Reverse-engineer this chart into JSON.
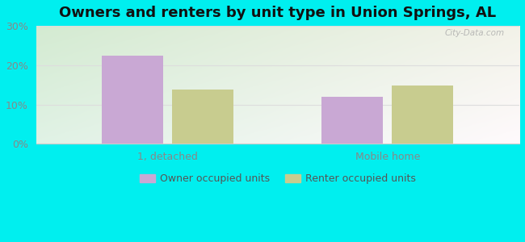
{
  "title": "Owners and renters by unit type in Union Springs, AL",
  "categories": [
    "1, detached",
    "Mobile home"
  ],
  "owner_values": [
    22.5,
    12.0
  ],
  "renter_values": [
    13.8,
    14.8
  ],
  "owner_color": "#c9a8d4",
  "renter_color": "#c8cc8f",
  "ylim": [
    0,
    30
  ],
  "yticks": [
    0,
    10,
    20,
    30
  ],
  "ytick_labels": [
    "0%",
    "10%",
    "20%",
    "30%"
  ],
  "bar_width": 0.28,
  "legend_labels": [
    "Owner occupied units",
    "Renter occupied units"
  ],
  "bg_outer": "#00EFEF",
  "title_fontsize": 13,
  "axis_fontsize": 9,
  "legend_fontsize": 9,
  "watermark": "City-Data.com",
  "tick_color": "#888888",
  "grid_color": "#dddddd"
}
